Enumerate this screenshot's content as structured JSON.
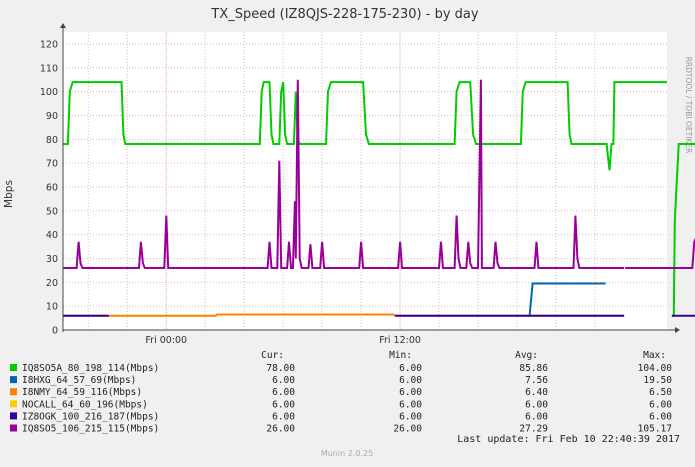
{
  "chart_data": {
    "type": "line",
    "title": "TX_Speed (IZ8QJS-228-175-230) - by day",
    "ylabel": "Mbps",
    "ylim": [
      0,
      125
    ],
    "yticks": [
      0,
      10,
      20,
      30,
      40,
      50,
      60,
      70,
      80,
      90,
      100,
      110,
      120
    ],
    "x_range_hours": [
      -5.3,
      25.7
    ],
    "x_ticks": [
      {
        "label": "Fri 00:00",
        "hour": 0
      },
      {
        "label": "Fri 12:00",
        "hour": 12
      }
    ],
    "grid": true,
    "watermark": "RRDTOOL / TOBI OETIKER",
    "footer": "Munin 2.0.25",
    "last_update": "Last update: Fri Feb 10 22:40:39 2017",
    "legend_headers": {
      "cur": "Cur:",
      "min": "Min:",
      "avg": "Avg:",
      "max": "Max:"
    },
    "series": [
      {
        "name": "IQ8SO5A_80_198_114(Mbps)",
        "color": "#00cc00",
        "cur": "78.00",
        "min": "6.00",
        "avg": "85.86",
        "max": "104.00",
        "segments": [
          [
            [
              -5.3,
              78
            ],
            [
              -5.05,
              78
            ],
            [
              -4.95,
              100
            ],
            [
              -4.8,
              104
            ],
            [
              -2.3,
              104
            ],
            [
              -2.2,
              82
            ],
            [
              -2.1,
              78
            ],
            [
              4.8,
              78
            ],
            [
              4.9,
              100
            ],
            [
              5.0,
              104
            ],
            [
              5.3,
              104
            ],
            [
              5.4,
              82
            ],
            [
              5.5,
              78
            ],
            [
              5.8,
              78
            ],
            [
              5.9,
              100
            ],
            [
              6.0,
              104
            ],
            [
              6.1,
              82
            ],
            [
              6.2,
              78
            ],
            [
              6.55,
              78
            ],
            [
              6.65,
              100
            ],
            [
              6.75,
              80
            ],
            [
              6.85,
              78
            ],
            [
              8.2,
              78
            ],
            [
              8.3,
              100
            ],
            [
              8.45,
              104
            ],
            [
              10.1,
              104
            ],
            [
              10.25,
              82
            ],
            [
              10.4,
              78
            ],
            [
              14.8,
              78
            ],
            [
              14.9,
              100
            ],
            [
              15.05,
              104
            ],
            [
              15.6,
              104
            ],
            [
              15.75,
              82
            ],
            [
              15.9,
              78
            ],
            [
              18.2,
              78
            ],
            [
              18.3,
              100
            ],
            [
              18.45,
              104
            ],
            [
              20.6,
              104
            ],
            [
              20.7,
              82
            ],
            [
              20.8,
              78
            ],
            [
              22.6,
              78
            ],
            [
              22.75,
              67
            ],
            [
              22.85,
              78
            ],
            [
              22.95,
              78
            ],
            [
              23.0,
              104
            ],
            [
              25.7,
              104
            ]
          ],
          [
            [
              25.95,
              6
            ],
            [
              26.05,
              6
            ],
            [
              26.1,
              46
            ],
            [
              26.3,
              78
            ],
            [
              28.4,
              78
            ],
            [
              28.5,
              100
            ],
            [
              28.6,
              104
            ],
            [
              30.3,
              104
            ],
            [
              30.4,
              82
            ],
            [
              30.45,
              78
            ],
            [
              30.6,
              78
            ],
            [
              30.7,
              104
            ],
            [
              30.9,
              104
            ],
            [
              31.0,
              82
            ],
            [
              31.05,
              78
            ],
            [
              32.8,
              78
            ],
            [
              32.9,
              100
            ],
            [
              33.05,
              104
            ],
            [
              33.25,
              104
            ],
            [
              33.35,
              78
            ],
            [
              33.55,
              78
            ]
          ]
        ]
      },
      {
        "name": "I8HXG_64_57_69(Mbps)",
        "color": "#0066b3",
        "cur": "6.00",
        "min": "6.00",
        "avg": "7.56",
        "max": "19.50",
        "segments": [
          [
            [
              18.55,
              6
            ],
            [
              18.65,
              6
            ],
            [
              18.8,
              19.5
            ],
            [
              22.55,
              19.5
            ]
          ]
        ]
      },
      {
        "name": "I8NMY_64_59_116(Mbps)",
        "color": "#ff8000",
        "cur": "6.00",
        "min": "6.00",
        "avg": "6.40",
        "max": "6.50",
        "segments": [
          [
            [
              -5.3,
              6
            ],
            [
              2.55,
              6
            ],
            [
              2.6,
              6.5
            ],
            [
              11.65,
              6.5
            ],
            [
              11.75,
              6
            ],
            [
              23.5,
              6
            ]
          ]
        ]
      },
      {
        "name": "NOCALL_64_60_196(Mbps)",
        "color": "#ffcc00",
        "cur": "6.00",
        "min": "6.00",
        "avg": "6.00",
        "max": "6.00",
        "segments": [
          [
            [
              28.5,
              6
            ],
            [
              33.55,
              6
            ]
          ]
        ]
      },
      {
        "name": "IZ8OGK_100_216_187(Mbps)",
        "color": "#330099",
        "cur": "6.00",
        "min": "6.00",
        "avg": "6.00",
        "max": "6.00",
        "segments": [
          [
            [
              -5.3,
              6
            ],
            [
              -2.95,
              6
            ]
          ],
          [
            [
              11.75,
              6
            ],
            [
              23.5,
              6
            ]
          ],
          [
            [
              25.95,
              6
            ],
            [
              28.5,
              6
            ]
          ]
        ]
      },
      {
        "name": "IQ8SO5_106_215_115(Mbps)",
        "color": "#990099",
        "cur": "26.00",
        "min": "26.00",
        "avg": "27.29",
        "max": "105.17",
        "segments": [
          [
            [
              -5.3,
              26
            ],
            [
              -4.6,
              26
            ],
            [
              -4.5,
              37
            ],
            [
              -4.4,
              28
            ],
            [
              -4.3,
              26
            ],
            [
              -1.4,
              26
            ],
            [
              -1.3,
              37
            ],
            [
              -1.2,
              28
            ],
            [
              -1.1,
              26
            ],
            [
              -0.1,
              26
            ],
            [
              0,
              48
            ],
            [
              0.1,
              26
            ],
            [
              5.2,
              26
            ],
            [
              5.3,
              37
            ],
            [
              5.4,
              26
            ],
            [
              5.7,
              26
            ],
            [
              5.8,
              71
            ],
            [
              5.9,
              26
            ],
            [
              6.2,
              26
            ],
            [
              6.3,
              37
            ],
            [
              6.4,
              26
            ],
            [
              6.5,
              26
            ],
            [
              6.6,
              54
            ],
            [
              6.65,
              30
            ],
            [
              6.75,
              105
            ],
            [
              6.85,
              30
            ],
            [
              6.95,
              26
            ],
            [
              7.3,
              26
            ],
            [
              7.4,
              36
            ],
            [
              7.5,
              26
            ],
            [
              7.9,
              26
            ],
            [
              8.0,
              37
            ],
            [
              8.1,
              26
            ],
            [
              9.9,
              26
            ],
            [
              10.0,
              37
            ],
            [
              10.1,
              26
            ],
            [
              11.9,
              26
            ],
            [
              12.0,
              37
            ],
            [
              12.1,
              26
            ],
            [
              14.0,
              26
            ],
            [
              14.1,
              37
            ],
            [
              14.2,
              26
            ],
            [
              14.8,
              26
            ],
            [
              14.9,
              48
            ],
            [
              15.0,
              30
            ],
            [
              15.1,
              26
            ],
            [
              15.4,
              26
            ],
            [
              15.5,
              37
            ],
            [
              15.6,
              28
            ],
            [
              15.7,
              26
            ],
            [
              16.0,
              26
            ],
            [
              16.1,
              80
            ],
            [
              16.15,
              105
            ],
            [
              16.2,
              26
            ],
            [
              16.8,
              26
            ],
            [
              16.9,
              37
            ],
            [
              17.0,
              28
            ],
            [
              17.1,
              26
            ],
            [
              18.9,
              26
            ],
            [
              19.0,
              37
            ],
            [
              19.1,
              26
            ],
            [
              20.9,
              26
            ],
            [
              21.0,
              48
            ],
            [
              21.1,
              30
            ],
            [
              21.2,
              26
            ],
            [
              23.5,
              26
            ]
          ],
          [
            [
              23.55,
              26
            ],
            [
              27.0,
              26
            ],
            [
              27.1,
              37
            ],
            [
              27.2,
              39
            ],
            [
              27.3,
              28
            ],
            [
              27.4,
              26
            ],
            [
              30.2,
              26
            ],
            [
              30.3,
              37
            ],
            [
              30.4,
              28
            ],
            [
              30.5,
              26
            ],
            [
              32.5,
              26
            ]
          ]
        ]
      }
    ]
  }
}
